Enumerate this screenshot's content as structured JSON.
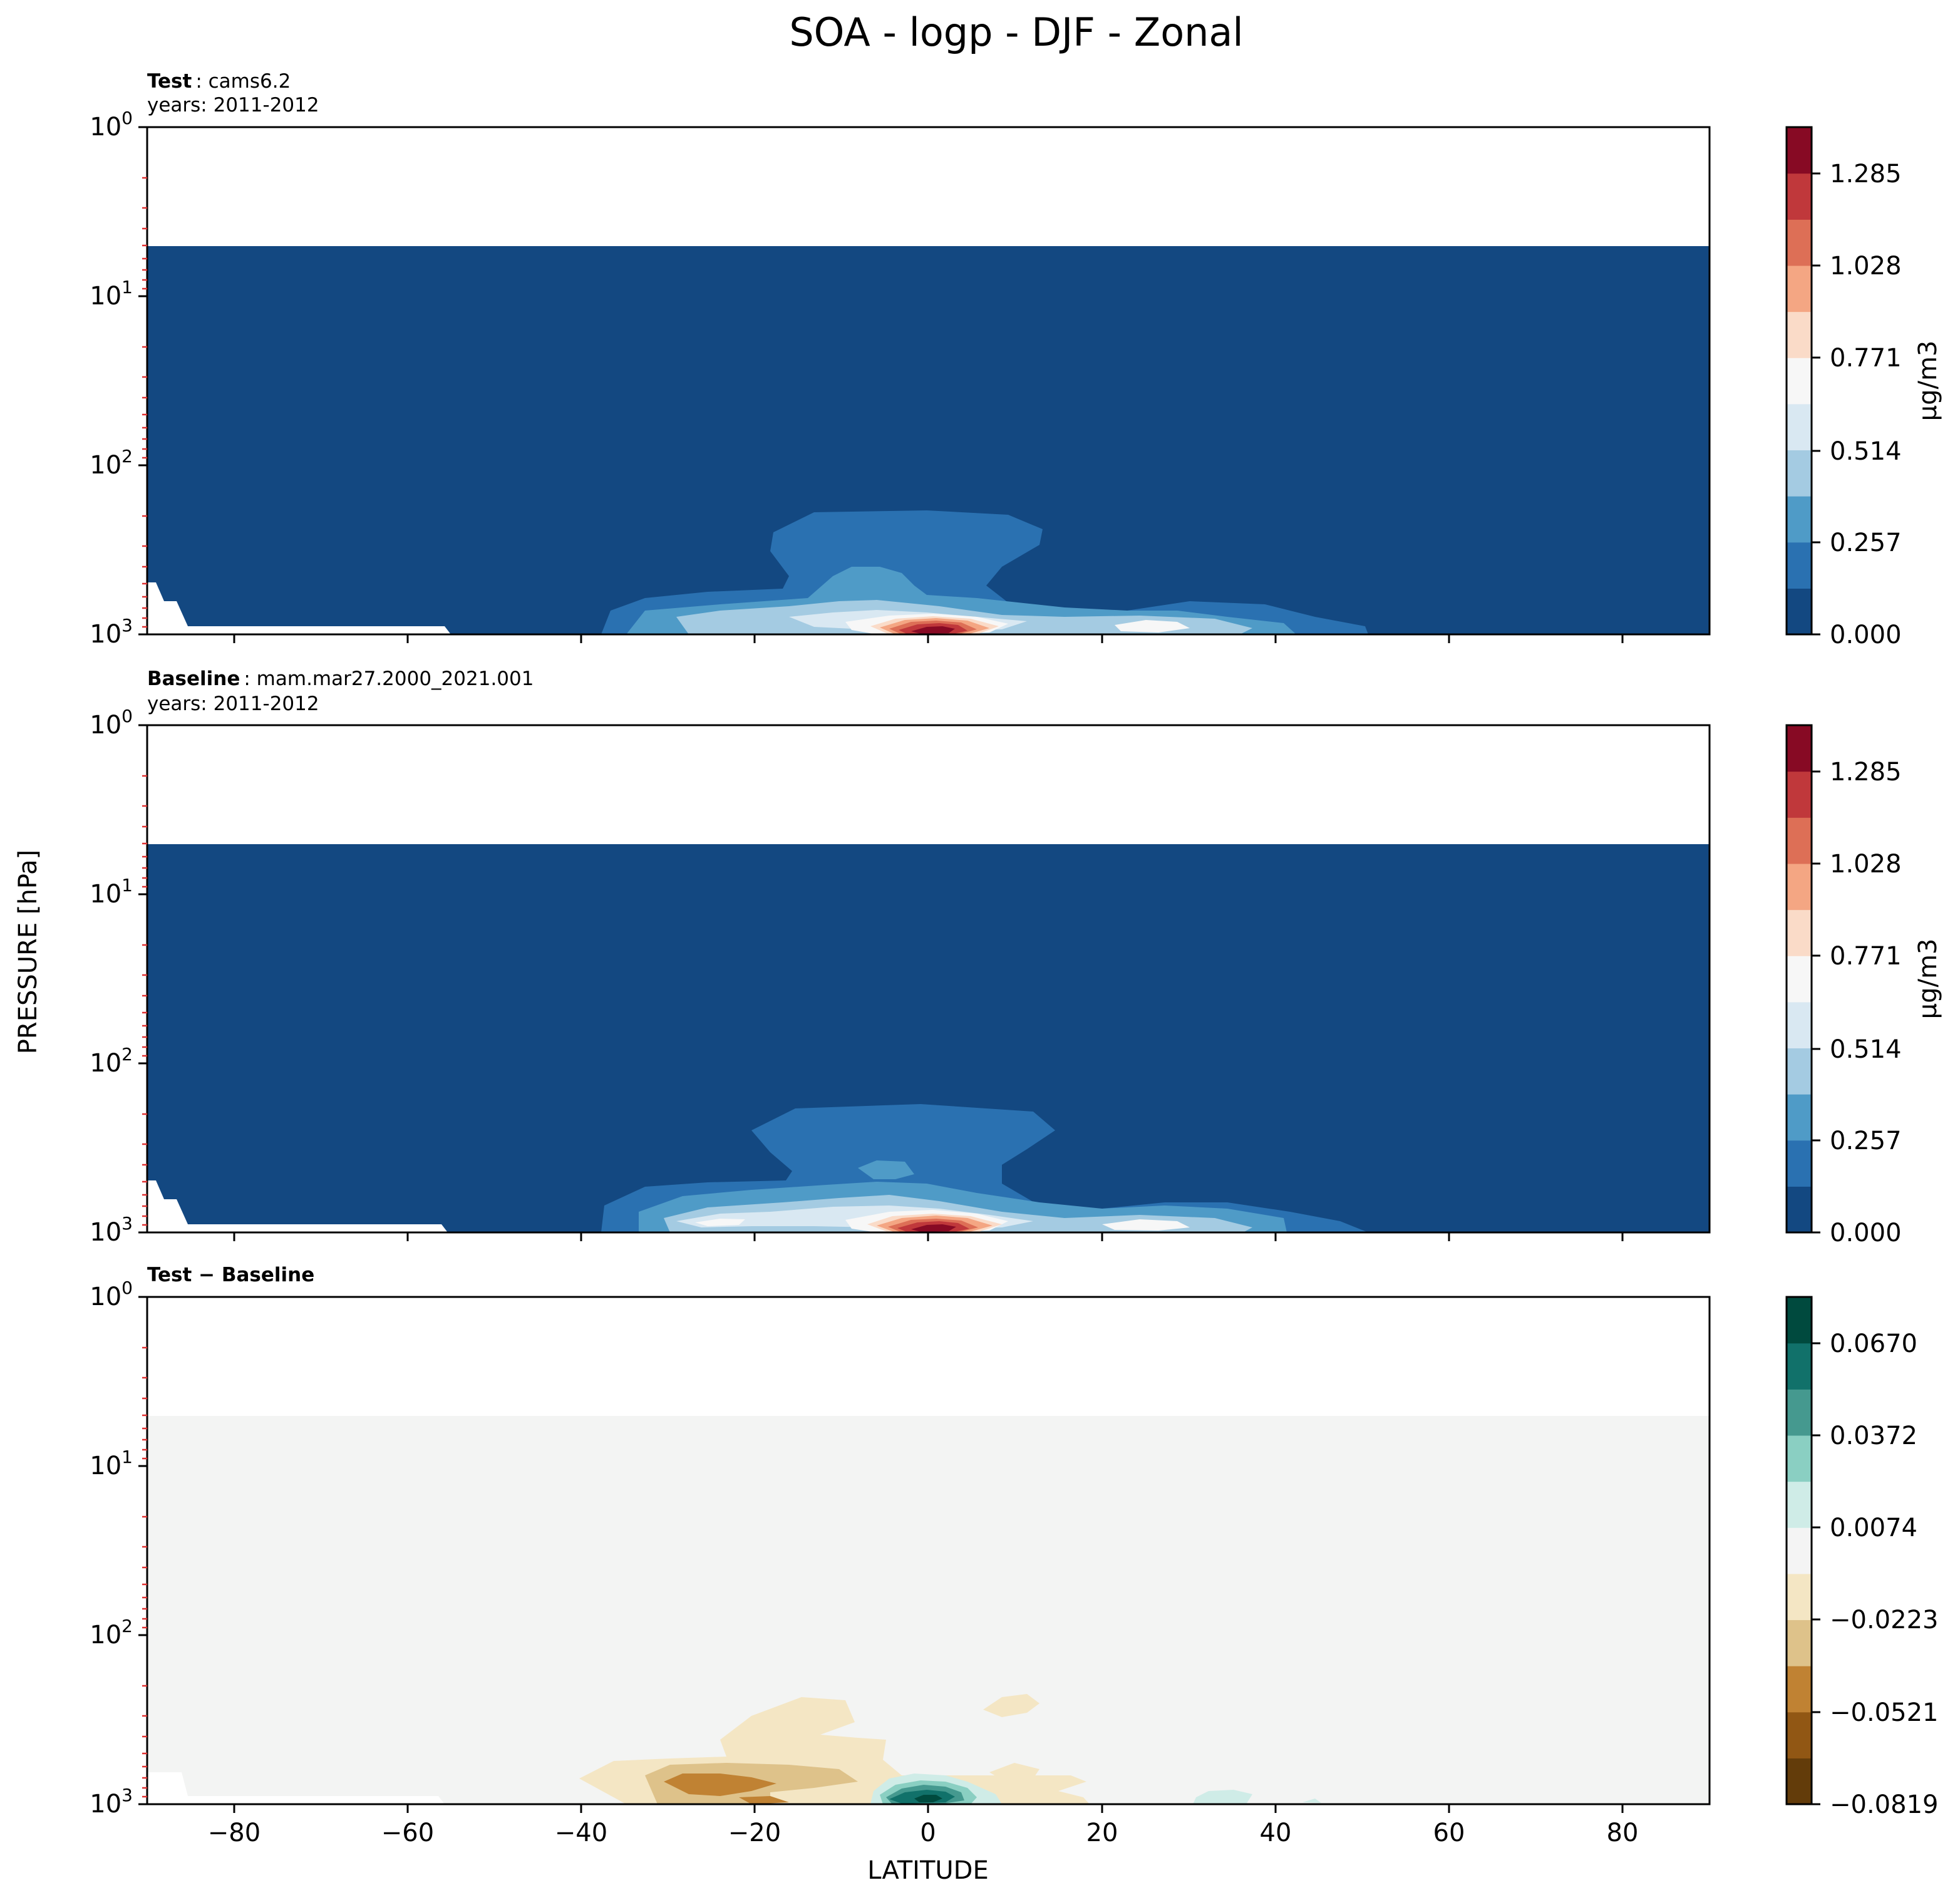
{
  "figure": {
    "title": "SOA - logp - DJF - Zonal",
    "xlabel": "LATITUDE",
    "ylabel": "PRESSURE [hPa]"
  },
  "panels": [
    {
      "id": "test",
      "title_bold": "Test",
      "title_rest": ": cams6.2",
      "subtitle": "years: 2011-2012",
      "colorbar_label": "μg/m3",
      "colorbar_ticks": [
        "0.000",
        "0.257",
        "0.514",
        "0.771",
        "1.028",
        "1.285"
      ],
      "colorbar_colors": [
        "#134881",
        "#2a71b1",
        "#4f9bc7",
        "#a4cbe2",
        "#d9e8f2",
        "#f7f7f7",
        "#fadbc8",
        "#f4a683",
        "#dd6f56",
        "#c0383b",
        "#870a24"
      ]
    },
    {
      "id": "baseline",
      "title_bold": "Baseline",
      "title_rest": ": mam.mar27.2000_2021.001",
      "subtitle": "years: 2011-2012",
      "colorbar_label": "μg/m3",
      "colorbar_ticks": [
        "0.000",
        "0.257",
        "0.514",
        "0.771",
        "1.028",
        "1.285"
      ],
      "colorbar_colors": [
        "#134881",
        "#2a71b1",
        "#4f9bc7",
        "#a4cbe2",
        "#d9e8f2",
        "#f7f7f7",
        "#fadbc8",
        "#f4a683",
        "#dd6f56",
        "#c0383b",
        "#870a24"
      ]
    },
    {
      "id": "diff",
      "title_bold": "Test − Baseline",
      "title_rest": "",
      "subtitle": "",
      "colorbar_label": "",
      "colorbar_ticks": [
        "−0.0819",
        "−0.0521",
        "−0.0223",
        "0.0074",
        "0.0372",
        "0.0670"
      ],
      "colorbar_colors": [
        "#633c0a",
        "#915714",
        "#c08233",
        "#dec28a",
        "#f4e6c4",
        "#f4f4f4",
        "#cfece7",
        "#8acfc2",
        "#45998f",
        "#11716a",
        "#004a3e"
      ]
    }
  ],
  "chart_data": [
    {
      "type": "contour",
      "panel": "Test: cams6.2",
      "title": "Test : cams6.2",
      "subtitle": "years: 2011-2012",
      "xlabel": "LATITUDE",
      "ylabel": "PRESSURE [hPa]",
      "xlim": [
        -90,
        90
      ],
      "ylim": [
        1000,
        1
      ],
      "yscale": "log",
      "x_ticks": [
        "−80",
        "−60",
        "−40",
        "−20",
        "0",
        "20",
        "40",
        "60",
        "80"
      ],
      "y_ticks": [
        "10^0",
        "10^1",
        "10^2",
        "10^3"
      ],
      "colorbar_label": "μg/m3",
      "colorbar_range": [
        0.0,
        1.414
      ],
      "colorbar_ticks": [
        0.0,
        0.257,
        0.514,
        0.771,
        1.028,
        1.285
      ],
      "data_top_pressure_hPa": 5,
      "max_location": {
        "lat": 1.5,
        "pressure_hPa": 950,
        "value": 1.35
      },
      "features": [
        {
          "level": "0.13-0.26",
          "lat_range": [
            -18,
            14
          ],
          "pressure_range": [
            330,
            1000
          ]
        },
        {
          "level": "0.26-0.51",
          "lat_range": [
            -32,
            28
          ],
          "pressure_range": [
            820,
            1000
          ]
        },
        {
          "level": "0.51-0.77",
          "lat_range": [
            -25,
            30
          ],
          "pressure_range": [
            880,
            1000
          ]
        },
        {
          "level": "0.77-1.41",
          "lat_range": [
            -6,
            8
          ],
          "pressure_range": [
            900,
            1000
          ]
        }
      ]
    },
    {
      "type": "contour",
      "panel": "Baseline: mam.mar27.2000_2021.001",
      "title": "Baseline : mam.mar27.2000_2021.001",
      "subtitle": "years: 2011-2012",
      "xlabel": "LATITUDE",
      "ylabel": "PRESSURE [hPa]",
      "xlim": [
        -90,
        90
      ],
      "ylim": [
        1000,
        1
      ],
      "yscale": "log",
      "x_ticks": [
        "−80",
        "−60",
        "−40",
        "−20",
        "0",
        "20",
        "40",
        "60",
        "80"
      ],
      "y_ticks": [
        "10^0",
        "10^1",
        "10^2",
        "10^3"
      ],
      "colorbar_label": "μg/m3",
      "colorbar_range": [
        0.0,
        1.414
      ],
      "colorbar_ticks": [
        0.0,
        0.257,
        0.514,
        0.771,
        1.028,
        1.285
      ],
      "data_top_pressure_hPa": 5,
      "max_location": {
        "lat": 1.5,
        "pressure_hPa": 950,
        "value": 1.35
      },
      "features": [
        {
          "level": "0.13-0.26",
          "lat_range": [
            -20,
            15
          ],
          "pressure_range": [
            320,
            1000
          ]
        },
        {
          "level": "0.26-0.51",
          "lat_range": [
            -33,
            30
          ],
          "pressure_range": [
            800,
            1000
          ]
        },
        {
          "level": "0.51-0.77",
          "lat_range": [
            -27,
            30
          ],
          "pressure_range": [
            870,
            1000
          ]
        },
        {
          "level": "0.77-1.41",
          "lat_range": [
            -6,
            9
          ],
          "pressure_range": [
            900,
            1000
          ]
        }
      ]
    },
    {
      "type": "contour",
      "panel": "Test − Baseline",
      "title": "Test − Baseline",
      "xlabel": "LATITUDE",
      "ylabel": "PRESSURE [hPa]",
      "xlim": [
        -90,
        90
      ],
      "ylim": [
        1000,
        1
      ],
      "yscale": "log",
      "x_ticks": [
        "−80",
        "−60",
        "−40",
        "−20",
        "0",
        "20",
        "40",
        "60",
        "80"
      ],
      "y_ticks": [
        "10^0",
        "10^1",
        "10^2",
        "10^3"
      ],
      "colorbar_range": [
        -0.0819,
        0.0819
      ],
      "colorbar_ticks": [
        -0.0819,
        -0.0521,
        -0.0223,
        0.0074,
        0.0372,
        0.067
      ],
      "data_top_pressure_hPa": 5,
      "features": [
        {
          "level": "negative (−0.04 to −0.01)",
          "lat_range": [
            -40,
            -5
          ],
          "pressure_range": [
            400,
            1000
          ]
        },
        {
          "level": "positive max ~0.08",
          "lat_range": [
            -6,
            8
          ],
          "pressure_range": [
            880,
            1000
          ]
        },
        {
          "level": "negative weak",
          "lat_range": [
            7,
            13
          ],
          "pressure_range": [
            420,
            600
          ]
        },
        {
          "level": "positive weak",
          "lat_range": [
            31,
            41
          ],
          "pressure_range": [
            950,
            1000
          ]
        }
      ]
    }
  ]
}
